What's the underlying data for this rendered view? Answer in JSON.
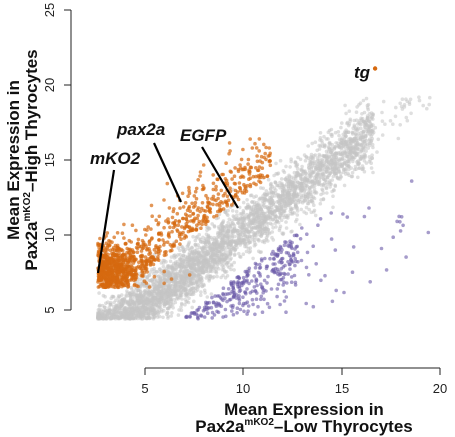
{
  "chart_data": {
    "type": "scatter",
    "xlabel": {
      "line1": "Mean Expression in",
      "line2_prefix": "Pax2a",
      "line2_sup": "mKO2",
      "line2_suffix": "–Low Thyrocytes"
    },
    "ylabel": {
      "line1": "Mean Expression in",
      "line2_prefix": "Pax2a",
      "line2_sup": "mKO2",
      "line2_suffix": "–High Thyrocytes"
    },
    "xlim": [
      0,
      20
    ],
    "ylim": [
      4,
      25
    ],
    "x_ticks": [
      "5",
      "10",
      "15",
      "20"
    ],
    "y_ticks": [
      "5",
      "10",
      "15",
      "20",
      "25"
    ],
    "grid": false,
    "series": [
      {
        "role": "not-significant",
        "color": "#c4c4c4",
        "count": 5200,
        "x_range": [
          2.6,
          19.5
        ],
        "y_range": [
          4.4,
          19.4
        ]
      },
      {
        "role": "up-in-high",
        "color": "#d6690f",
        "count": 1200,
        "x_range": [
          2.6,
          11.5
        ],
        "y_range": [
          6.5,
          16.5
        ]
      },
      {
        "role": "down-in-high",
        "color": "#6a5aa8",
        "count": 650,
        "x_range": [
          4.5,
          19.5
        ],
        "y_range": [
          4.4,
          15.5
        ]
      }
    ],
    "highlighted_points": [
      {
        "label": "tg",
        "x": 16.7,
        "y": 21.1,
        "color": "#d6690f"
      },
      {
        "label": "pax2a",
        "x": 7.0,
        "y": 12.2
      },
      {
        "label": "EGFP",
        "x": 9.5,
        "y": 11.8
      },
      {
        "label": "mKO2",
        "x": 2.8,
        "y": 7.5
      }
    ]
  }
}
